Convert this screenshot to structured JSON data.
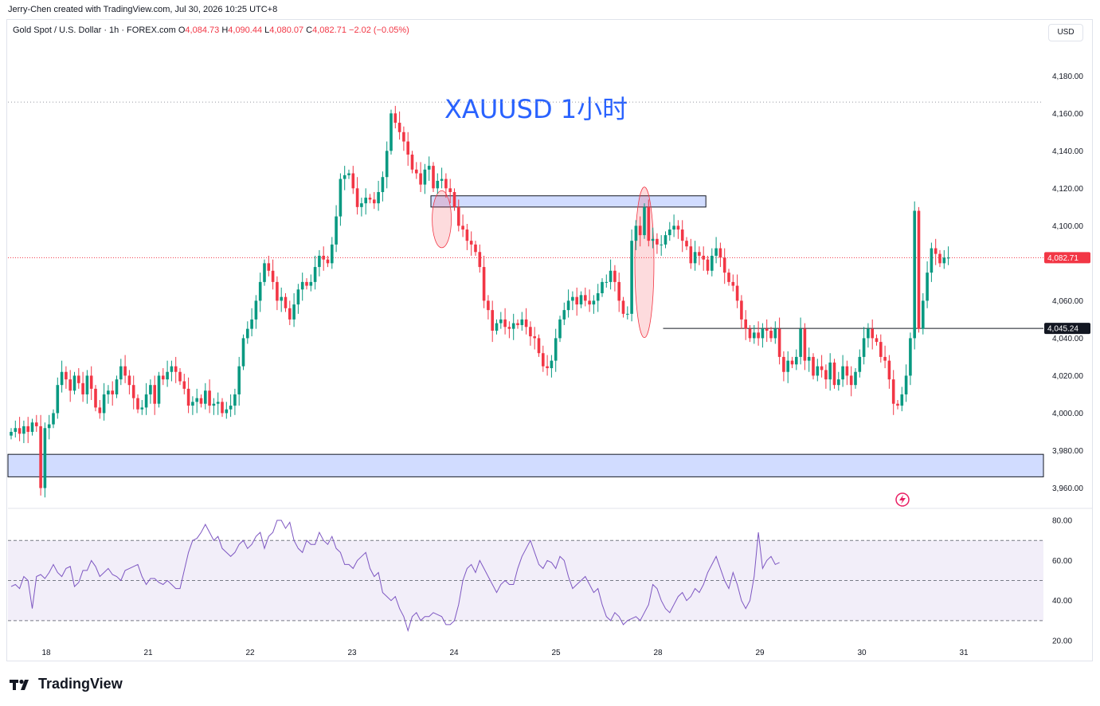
{
  "header": {
    "credit": "Jerry-Chen created with TradingView.com, Jul 30, 2026 10:25 UTC+8"
  },
  "legend": {
    "symbol": "Gold Spot / U.S. Dollar · 1h · FOREX.com",
    "o_label": "O",
    "o_value": "4,084.73",
    "h_label": "H",
    "h_value": "4,090.44",
    "l_label": "L",
    "l_value": "4,080.07",
    "c_label": "C",
    "c_value": "4,082.71",
    "change": "−2.02 (−0.05%)"
  },
  "currency": "USD",
  "brand": "TradingView",
  "colors": {
    "up": "#089981",
    "down": "#f23645",
    "zone_fill": "#d1dcff",
    "rsi_line": "#7e57c2",
    "title": "#2962ff"
  },
  "chart_data": {
    "type": "candlestick",
    "title": "XAUUSD 1小时",
    "symbol": "XAUUSD",
    "timeframe": "1h",
    "price_ylim": [
      3950,
      4195
    ],
    "price_ticks": [
      "4,180.00",
      "4,160.00",
      "4,140.00",
      "4,120.00",
      "4,100.00",
      "4,060.00",
      "4,040.00",
      "4,020.00",
      "4,000.00",
      "3,980.00",
      "3,960.00"
    ],
    "x_ticks": [
      "18",
      "21",
      "22",
      "23",
      "24",
      "25",
      "28",
      "29",
      "30",
      "31"
    ],
    "last_price_label": "4,082.71",
    "level_label": "4,045.24",
    "level_price": 4045.24,
    "zones": [
      {
        "from_price": 4110,
        "to_price": 4116,
        "from_bar": 100,
        "to_bar": 164
      },
      {
        "from_price": 3966,
        "to_price": 3978,
        "from_bar": 0,
        "to_bar": 180
      }
    ],
    "highlights": [
      {
        "bar": 102,
        "low": 4090,
        "high": 4117
      },
      {
        "bar": 150,
        "low": 4042,
        "high": 4119
      }
    ],
    "closes": [
      3990,
      3992,
      3989,
      3993,
      3990,
      3995,
      3993,
      3960,
      3992,
      3994,
      4000,
      4015,
      4022,
      4018,
      4012,
      4020,
      4016,
      4010,
      4020,
      4013,
      4003,
      4000,
      4010,
      4012,
      4010,
      4018,
      4025,
      4020,
      4015,
      4008,
      4002,
      4003,
      4010,
      4015,
      4005,
      4020,
      4018,
      4022,
      4025,
      4022,
      4017,
      4013,
      4004,
      4006,
      4008,
      4005,
      4012,
      4004,
      4005,
      4006,
      4000,
      4002,
      4004,
      4010,
      4025,
      4040,
      4045,
      4050,
      4060,
      4070,
      4080,
      4076,
      4070,
      4060,
      4062,
      4056,
      4050,
      4058,
      4066,
      4070,
      4068,
      4070,
      4078,
      4084,
      4082,
      4080,
      4090,
      4105,
      4125,
      4127,
      4128,
      4120,
      4110,
      4112,
      4115,
      4114,
      4112,
      4118,
      4126,
      4140,
      4160,
      4155,
      4150,
      4145,
      4138,
      4130,
      4128,
      4122,
      4130,
      4132,
      4120,
      4124,
      4125,
      4120,
      4118,
      4110,
      4100,
      4098,
      4092,
      4090,
      4086,
      4078,
      4060,
      4055,
      4044,
      4048,
      4050,
      4046,
      4045,
      4048,
      4047,
      4050,
      4046,
      4041,
      4040,
      4032,
      4025,
      4024,
      4028,
      4040,
      4050,
      4055,
      4060,
      4062,
      4058,
      4063,
      4060,
      4058,
      4060,
      4064,
      4070,
      4070,
      4076,
      4070,
      4060,
      4053,
      4053,
      4092,
      4100,
      4095,
      4110,
      4092,
      4093,
      4090,
      4090,
      4095,
      4098,
      4100,
      4098,
      4092,
      4089,
      4080,
      4086,
      4084,
      4082,
      4076,
      4084,
      4088,
      4083,
      4075,
      4070,
      4068,
      4060,
      4050,
      4045,
      4040,
      4043,
      4040,
      4045,
      4044,
      4040,
      4045,
      4030,
      4022,
      4028,
      4026,
      4030,
      4045,
      4028,
      4030,
      4020,
      4025,
      4023,
      4018,
      4027,
      4015,
      4018,
      4025,
      4020,
      4015,
      4022,
      4030,
      4040,
      4045,
      4040,
      4038,
      4030,
      4028,
      4018,
      4005,
      4004,
      4010,
      4020,
      4040,
      4108,
      4045,
      4060,
      4075,
      4088,
      4085,
      4080,
      4083,
      4083
    ],
    "rsi": {
      "ylim": [
        20,
        82
      ],
      "ticks": [
        "80.00",
        "60.00",
        "40.00",
        "20.00"
      ],
      "bands": [
        70,
        50,
        30
      ],
      "values": [
        47,
        48,
        46,
        52,
        50,
        36,
        52,
        53,
        51,
        54,
        58,
        54,
        52,
        56,
        57,
        47,
        49,
        55,
        55,
        60,
        57,
        52,
        54,
        56,
        53,
        52,
        50,
        55,
        56,
        57,
        58,
        52,
        48,
        51,
        51,
        49,
        48,
        50,
        48,
        46,
        46,
        55,
        64,
        70,
        71,
        74,
        78,
        74,
        70,
        72,
        66,
        64,
        62,
        64,
        68,
        70,
        66,
        68,
        72,
        74,
        66,
        72,
        74,
        80,
        80,
        76,
        79,
        70,
        66,
        64,
        70,
        68,
        68,
        74,
        70,
        68,
        72,
        66,
        64,
        58,
        58,
        56,
        60,
        62,
        64,
        56,
        52,
        54,
        44,
        42,
        40,
        42,
        36,
        32,
        25,
        32,
        34,
        30,
        32,
        32,
        34,
        33,
        32,
        28,
        28,
        30,
        38,
        50,
        56,
        58,
        54,
        60,
        56,
        52,
        48,
        44,
        48,
        50,
        48,
        48,
        56,
        62,
        66,
        70,
        64,
        58,
        56,
        60,
        59,
        56,
        62,
        60,
        52,
        46,
        48,
        50,
        52,
        48,
        44,
        46,
        38,
        32,
        30,
        34,
        32,
        28,
        30,
        31,
        32,
        30,
        34,
        38,
        48,
        46,
        40,
        36,
        34,
        38,
        42,
        44,
        40,
        42,
        46,
        44,
        48,
        54,
        58,
        62,
        56,
        50,
        46,
        54,
        48,
        40,
        36,
        40,
        52,
        74,
        56,
        60,
        62,
        58,
        59
      ]
    }
  }
}
